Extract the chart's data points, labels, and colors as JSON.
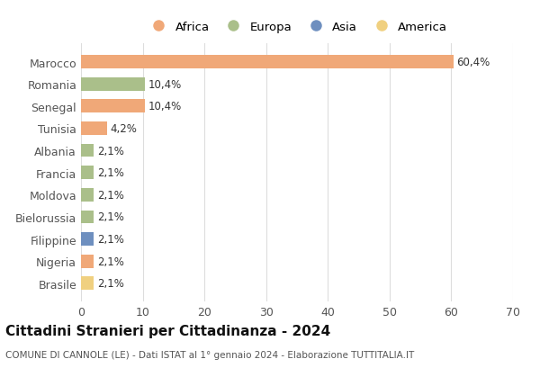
{
  "countries": [
    "Marocco",
    "Romania",
    "Senegal",
    "Tunisia",
    "Albania",
    "Francia",
    "Moldova",
    "Bielorussia",
    "Filippine",
    "Nigeria",
    "Brasile"
  ],
  "values": [
    60.4,
    10.4,
    10.4,
    4.2,
    2.1,
    2.1,
    2.1,
    2.1,
    2.1,
    2.1,
    2.1
  ],
  "labels": [
    "60,4%",
    "10,4%",
    "10,4%",
    "4,2%",
    "2,1%",
    "2,1%",
    "2,1%",
    "2,1%",
    "2,1%",
    "2,1%",
    "2,1%"
  ],
  "continents": [
    "Africa",
    "Europa",
    "Africa",
    "Africa",
    "Europa",
    "Europa",
    "Europa",
    "Europa",
    "Asia",
    "Africa",
    "America"
  ],
  "continent_colors": {
    "Africa": "#F0A878",
    "Europa": "#AABF8A",
    "Asia": "#6E8FBF",
    "America": "#F0D080"
  },
  "legend_entries": [
    "Africa",
    "Europa",
    "Asia",
    "America"
  ],
  "legend_colors": [
    "#F0A878",
    "#AABF8A",
    "#6E8FBF",
    "#F0D080"
  ],
  "xlim": [
    0,
    70
  ],
  "xticks": [
    0,
    10,
    20,
    30,
    40,
    50,
    60,
    70
  ],
  "title": "Cittadini Stranieri per Cittadinanza - 2024",
  "subtitle": "COMUNE DI CANNOLE (LE) - Dati ISTAT al 1° gennaio 2024 - Elaborazione TUTTITALIA.IT",
  "background_color": "#ffffff"
}
